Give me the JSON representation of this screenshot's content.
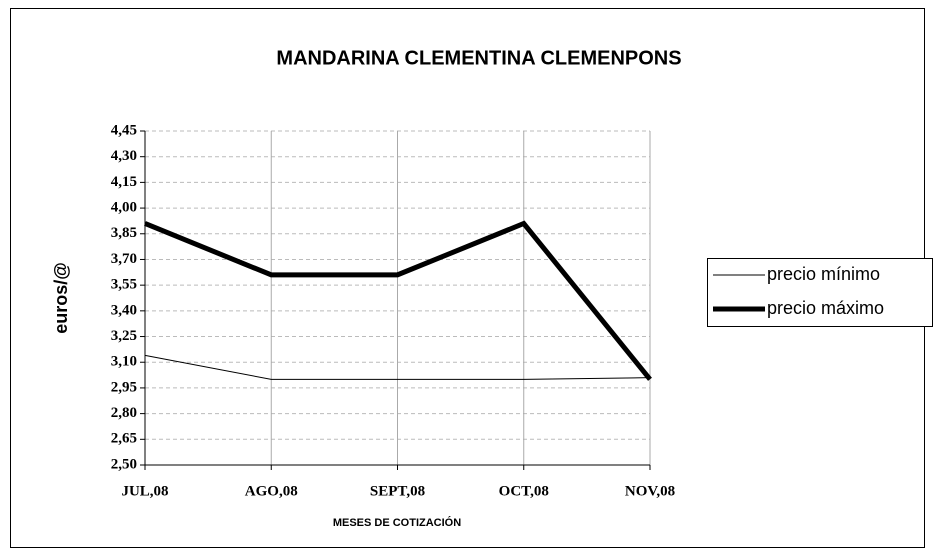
{
  "chart_data": {
    "type": "line",
    "title": "MANDARINA CLEMENTINA CLEMENPONS",
    "ylabel": "euros/@",
    "xlabel": "MESES DE COTIZACIÓN",
    "categories": [
      "JUL,08",
      "AGO,08",
      "SEPT,08",
      "OCT,08",
      "NOV,08"
    ],
    "series": [
      {
        "name": "precio mínimo",
        "color": "#000000",
        "width": 1,
        "values": [
          3.14,
          3.0,
          3.0,
          3.0,
          3.01
        ]
      },
      {
        "name": "precio máximo",
        "color": "#000000",
        "width": 5,
        "values": [
          3.91,
          3.61,
          3.61,
          3.91,
          3.0
        ]
      }
    ],
    "ylim": [
      2.5,
      4.45
    ],
    "yticks": [
      {
        "value": 2.5,
        "label": "2,50"
      },
      {
        "value": 2.65,
        "label": "2,65"
      },
      {
        "value": 2.8,
        "label": "2,80"
      },
      {
        "value": 2.95,
        "label": "2,95"
      },
      {
        "value": 3.1,
        "label": "3,10"
      },
      {
        "value": 3.25,
        "label": "3,25"
      },
      {
        "value": 3.4,
        "label": "3,40"
      },
      {
        "value": 3.55,
        "label": "3,55"
      },
      {
        "value": 3.7,
        "label": "3,70"
      },
      {
        "value": 3.85,
        "label": "3,85"
      },
      {
        "value": 4.0,
        "label": "4,00"
      },
      {
        "value": 4.15,
        "label": "4,15"
      },
      {
        "value": 4.3,
        "label": "4,30"
      },
      {
        "value": 4.45,
        "label": "4,45"
      }
    ],
    "grid": true,
    "legend": "right"
  }
}
